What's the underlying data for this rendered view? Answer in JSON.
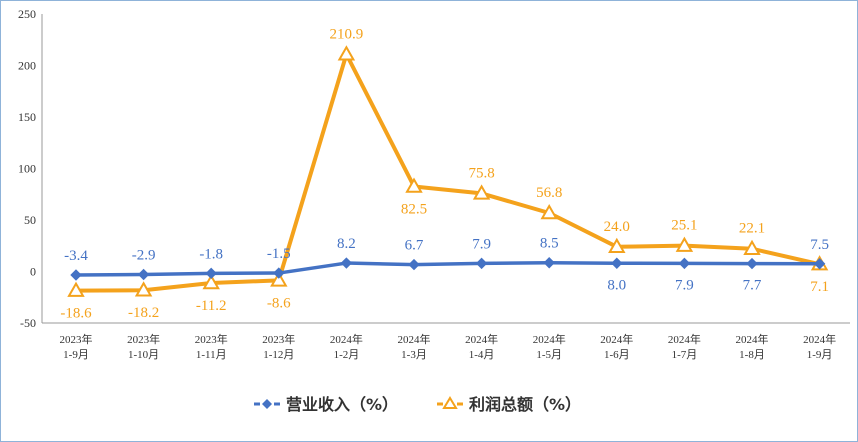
{
  "chart_data": {
    "type": "line",
    "categories": [
      [
        "2023年",
        "1-9月"
      ],
      [
        "2023年",
        "1-10月"
      ],
      [
        "2023年",
        "1-11月"
      ],
      [
        "2023年",
        "1-12月"
      ],
      [
        "2024年",
        "1-2月"
      ],
      [
        "2024年",
        "1-3月"
      ],
      [
        "2024年",
        "1-4月"
      ],
      [
        "2024年",
        "1-5月"
      ],
      [
        "2024年",
        "1-6月"
      ],
      [
        "2024年",
        "1-7月"
      ],
      [
        "2024年",
        "1-8月"
      ],
      [
        "2024年",
        "1-9月"
      ]
    ],
    "series": [
      {
        "name": "营业收入（%）",
        "color": "#4472c4",
        "marker": "diamond",
        "values": [
          -3.4,
          -2.9,
          -1.8,
          -1.5,
          8.2,
          6.7,
          7.9,
          8.5,
          8.0,
          7.9,
          7.7,
          7.5
        ],
        "labels": [
          "-3.4",
          "-2.9",
          "-1.8",
          "-1.5",
          "8.2",
          "6.7",
          "7.9",
          "8.5",
          "8.0",
          "7.9",
          "7.7",
          "7.5"
        ],
        "label_pos": [
          "above",
          "above",
          "above",
          "above",
          "above",
          "above",
          "above",
          "above",
          "below",
          "below",
          "below",
          "above"
        ]
      },
      {
        "name": "利润总额（%）",
        "color": "#f4a21c",
        "marker": "triangle",
        "values": [
          -18.6,
          -18.2,
          -11.2,
          -8.6,
          210.9,
          82.5,
          75.8,
          56.8,
          24.0,
          25.1,
          22.1,
          7.1
        ],
        "labels": [
          "-18.6",
          "-18.2",
          "-11.2",
          "-8.6",
          "210.9",
          "82.5",
          "75.8",
          "56.8",
          "24.0",
          "25.1",
          "22.1",
          "7.1"
        ],
        "label_pos": [
          "below",
          "below",
          "below",
          "below",
          "above",
          "below",
          "above",
          "above",
          "above",
          "above",
          "above",
          "below"
        ]
      }
    ],
    "ylim": [
      -50,
      250
    ],
    "yticks": [
      -50,
      0,
      50,
      100,
      150,
      200,
      250
    ],
    "grid": false,
    "legend": "bottom"
  }
}
